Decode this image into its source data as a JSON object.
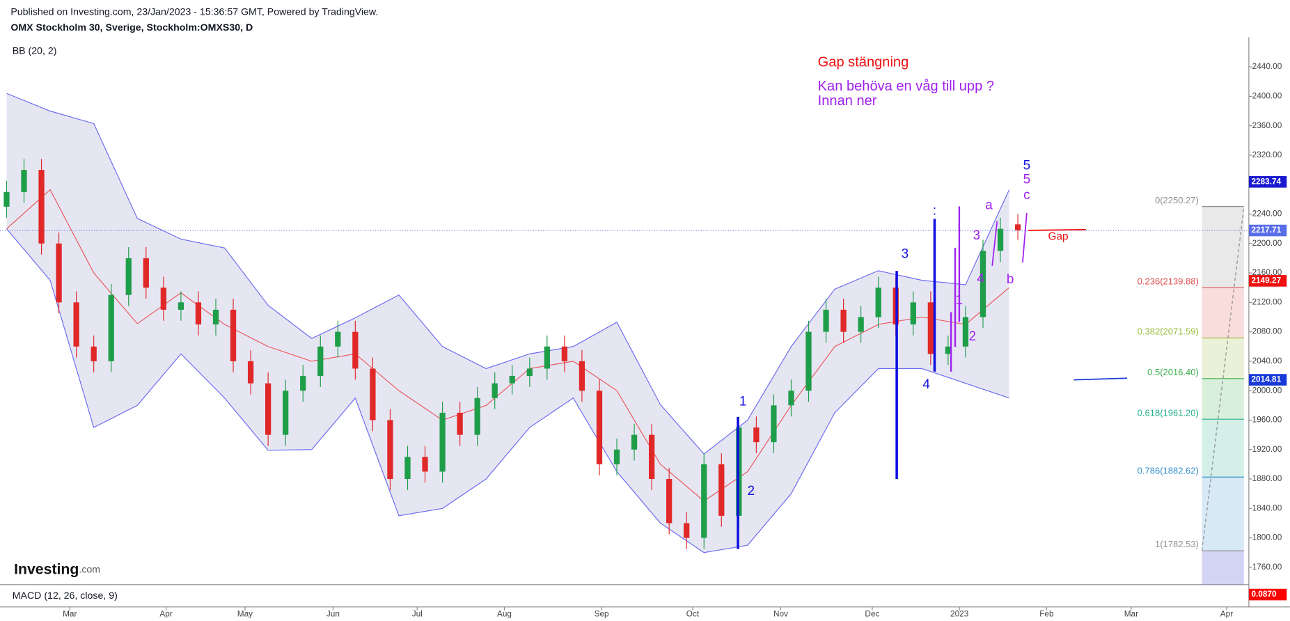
{
  "header": {
    "published": "Published on Investing.com, 23/Jan/2023 - 15:36:57 GMT, Powered by TradingView.",
    "symbol": "OMX Stockholm 30, Sverige, Stockholm:OMXS30, D",
    "indicator": "BB (20, 2)",
    "logo": "Investing",
    "logo_suffix": ".com"
  },
  "macd": {
    "label": "MACD (12, 26, close, 9)",
    "tag": {
      "value": 0.087,
      "label": "0.0870"
    },
    "tag_color": "#ff0000"
  },
  "chart_data": {
    "type": "candlestick",
    "x": [
      0,
      4,
      8,
      12,
      16,
      20,
      24,
      28,
      32,
      36,
      40,
      44,
      48,
      52,
      56,
      60,
      64,
      68,
      72,
      76,
      80,
      84,
      88,
      92,
      96,
      100,
      104,
      108,
      112,
      116,
      120,
      124,
      128,
      132,
      136,
      140,
      144,
      148,
      152,
      156,
      160,
      164,
      168,
      172,
      176,
      180,
      184,
      188,
      192,
      196,
      200,
      204,
      208,
      212,
      216,
      220,
      224,
      228,
      232
    ],
    "open": [
      2250,
      2270,
      2300,
      2200,
      2120,
      2060,
      2040,
      2130,
      2180,
      2140,
      2110,
      2120,
      2090,
      2110,
      2040,
      2010,
      1940,
      2000,
      2020,
      2060,
      2080,
      2030,
      1960,
      1880,
      1910,
      1890,
      1970,
      1940,
      1990,
      2010,
      2020,
      2030,
      2060,
      2040,
      2000,
      1900,
      1920,
      1940,
      1880,
      1820,
      1800,
      1900,
      1830,
      1950,
      1930,
      1980,
      2000,
      2080,
      2110,
      2080,
      2100,
      2140,
      2090,
      2120,
      2050,
      2060,
      2100,
      2190,
      2226
    ],
    "high": [
      2285,
      2315,
      2315,
      2215,
      2135,
      2075,
      2145,
      2195,
      2195,
      2155,
      2135,
      2135,
      2125,
      2125,
      2055,
      2025,
      2015,
      2035,
      2075,
      2095,
      2095,
      2045,
      1975,
      1925,
      1925,
      1985,
      1985,
      2005,
      2025,
      2035,
      2045,
      2075,
      2075,
      2055,
      2015,
      1935,
      1955,
      1955,
      1895,
      1835,
      1915,
      1915,
      1965,
      1965,
      1995,
      2015,
      2095,
      2125,
      2125,
      2115,
      2155,
      2155,
      2135,
      2135,
      2075,
      2115,
      2205,
      2235,
      2240
    ],
    "low": [
      2235,
      2255,
      2185,
      2105,
      2045,
      2025,
      2025,
      2115,
      2125,
      2095,
      2095,
      2075,
      2075,
      2025,
      1995,
      1925,
      1925,
      1985,
      2005,
      2045,
      2015,
      1945,
      1865,
      1865,
      1875,
      1875,
      1925,
      1925,
      1975,
      1995,
      2005,
      2015,
      2025,
      1985,
      1885,
      1885,
      1905,
      1865,
      1805,
      1785,
      1785,
      1815,
      1815,
      1915,
      1915,
      1965,
      1985,
      2065,
      2065,
      2065,
      2085,
      2075,
      2075,
      2035,
      2035,
      2045,
      2085,
      2175,
      2205
    ],
    "close": [
      2270,
      2300,
      2200,
      2120,
      2060,
      2040,
      2130,
      2180,
      2140,
      2110,
      2120,
      2090,
      2110,
      2040,
      2010,
      1940,
      2000,
      2020,
      2060,
      2080,
      2030,
      1960,
      1880,
      1910,
      1890,
      1970,
      1940,
      1990,
      2010,
      2020,
      2030,
      2060,
      2040,
      2000,
      1900,
      1920,
      1940,
      1880,
      1820,
      1800,
      1900,
      1830,
      1950,
      1930,
      1980,
      2000,
      2080,
      2110,
      2080,
      2100,
      2140,
      2090,
      2120,
      2050,
      2060,
      2100,
      2190,
      2220,
      2218
    ],
    "up_color": "#1f9e4a",
    "down_color": "#e02828",
    "bands": {
      "x": [
        0,
        10,
        20,
        30,
        40,
        50,
        60,
        70,
        80,
        90,
        100,
        110,
        120,
        130,
        140,
        150,
        160,
        170,
        180,
        190,
        200,
        210,
        220,
        230
      ],
      "upper": [
        2404,
        2380,
        2363,
        2234,
        2206,
        2194,
        2116,
        2071,
        2099,
        2130,
        2060,
        2030,
        2050,
        2060,
        2093,
        1981,
        1914,
        1960,
        2060,
        2138,
        2163,
        2150,
        2144,
        2273
      ],
      "middle": [
        2220,
        2273,
        2160,
        2091,
        2133,
        2090,
        2060,
        2040,
        2050,
        2000,
        1960,
        1980,
        2030,
        2040,
        2000,
        1900,
        1850,
        1890,
        1980,
        2060,
        2090,
        2100,
        2090,
        2140
      ],
      "lower": [
        2220,
        2150,
        1950,
        1980,
        2050,
        1990,
        1919,
        1920,
        1990,
        1830,
        1840,
        1880,
        1950,
        1990,
        1890,
        1820,
        1780,
        1790,
        1860,
        1970,
        2030,
        2030,
        2010,
        1990
      ],
      "band_color": "#6b6bf0",
      "middle_color": "#e85a5a",
      "fill": "#dcdcee"
    },
    "xlim": [
      0,
      285
    ],
    "xticks": [
      {
        "value": 14.5,
        "label": "Mar"
      },
      {
        "value": 36.6,
        "label": "Apr"
      },
      {
        "value": 54.7,
        "label": "May"
      },
      {
        "value": 74.9,
        "label": "Jun"
      },
      {
        "value": 94.2,
        "label": "Jul"
      },
      {
        "value": 114.2,
        "label": "Aug"
      },
      {
        "value": 136.5,
        "label": "Sep"
      },
      {
        "value": 157.4,
        "label": "Oct"
      },
      {
        "value": 177.6,
        "label": "Nov"
      },
      {
        "value": 198.6,
        "label": "Dec"
      },
      {
        "value": 218.6,
        "label": "2023"
      },
      {
        "value": 238.6,
        "label": "Feb"
      },
      {
        "value": 258.0,
        "label": "Mar"
      },
      {
        "value": 279.9,
        "label": "Apr"
      }
    ],
    "ylim": [
      1736.4,
      2480.4
    ],
    "yticks": [
      {
        "value": 1760,
        "label": "1760.00"
      },
      {
        "value": 1800,
        "label": "1800.00"
      },
      {
        "value": 1840,
        "label": "1840.00"
      },
      {
        "value": 1880,
        "label": "1880.00"
      },
      {
        "value": 1920,
        "label": "1920.00"
      },
      {
        "value": 1960,
        "label": "1960.00"
      },
      {
        "value": 2000,
        "label": "2000.00"
      },
      {
        "value": 2040,
        "label": "2040.00"
      },
      {
        "value": 2080,
        "label": "2080.00"
      },
      {
        "value": 2120,
        "label": "2120.00"
      },
      {
        "value": 2160,
        "label": "2160.00"
      },
      {
        "value": 2200,
        "label": "2200.00"
      },
      {
        "value": 2240,
        "label": "2240.00"
      },
      {
        "value": 2280,
        "label": "2280.00"
      },
      {
        "value": 2320,
        "label": "2320.00"
      },
      {
        "value": 2360,
        "label": "2360.00"
      },
      {
        "value": 2400,
        "label": "2400.00"
      },
      {
        "value": 2440,
        "label": "2440.00"
      }
    ],
    "last_price": 2217.71,
    "last_price_color": "#5a6ee8",
    "price_tags": [
      {
        "value": 2283.74,
        "color": "#1a1ad0"
      },
      {
        "value": 2217.71,
        "color": "#5a6ee8"
      },
      {
        "value": 2149.27,
        "color": "#ee1111"
      },
      {
        "value": 2014.81,
        "color": "#1a3ad8"
      }
    ],
    "fib": {
      "levels": [
        {
          "label": "0(2250.27)",
          "value": 2250.27,
          "color": "#909090"
        },
        {
          "label": "0.236(2139.88)",
          "value": 2139.88,
          "color": "#e05050"
        },
        {
          "label": "0.382(2071.59)",
          "value": 2071.59,
          "color": "#9cbb3b"
        },
        {
          "label": "0.5(2016.40)",
          "value": 2016.4,
          "color": "#3cae4c"
        },
        {
          "label": "0.618(1961.20)",
          "value": 1961.2,
          "color": "#27b08a"
        },
        {
          "label": "0.786(1882.62)",
          "value": 1882.62,
          "color": "#3590cf"
        },
        {
          "label": "1(1782.53)",
          "value": 1782.53,
          "color": "#909090"
        }
      ],
      "below_color": "#8080e0"
    },
    "annotations": [
      {
        "text": "Gap stängning",
        "color": "#ee1111"
      },
      {
        "text": "Kan behöva en våg till upp ?",
        "color": "#a020f0"
      },
      {
        "text": "Innan ner",
        "color": "#a020f0"
      },
      {
        "text": "1",
        "color": "#1010e0"
      },
      {
        "text": "2",
        "color": "#1010e0"
      },
      {
        "text": "3",
        "color": "#1010e0"
      },
      {
        "text": "4",
        "color": "#1010e0"
      },
      {
        "text": "5",
        "color": "#1010e0"
      },
      {
        "text": ":",
        "color": "#1010e0"
      },
      {
        "text": "1",
        "color": "#a020f0"
      },
      {
        "text": "2",
        "color": "#a020f0"
      },
      {
        "text": "3",
        "color": "#a020f0"
      },
      {
        "text": "4",
        "color": "#a020f0"
      },
      {
        "text": "5",
        "color": "#a020f0"
      },
      {
        "text": "a",
        "color": "#a020f0"
      },
      {
        "text": "b",
        "color": "#a020f0"
      },
      {
        "text": "c",
        "color": "#a020f0"
      },
      {
        "text": "Gap",
        "color": "#ee1111"
      }
    ]
  }
}
